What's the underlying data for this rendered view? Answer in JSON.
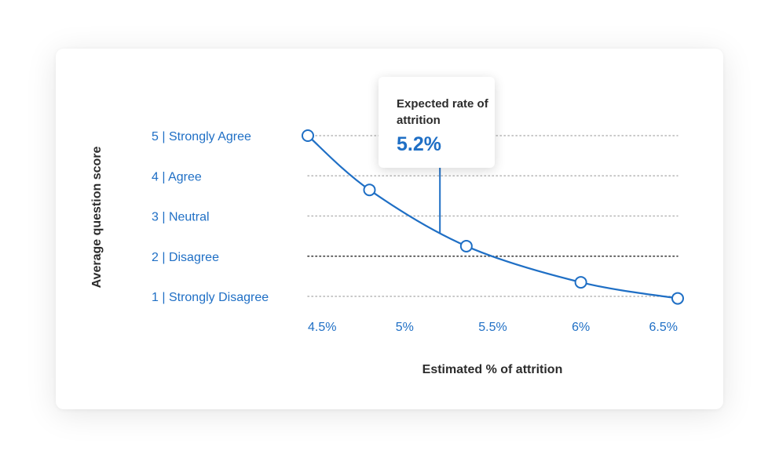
{
  "chart_data": {
    "type": "line",
    "ylabel": "Average question score",
    "xlabel": "Estimated % of attrition",
    "y_categories": [
      "1 | Strongly Disagree",
      "2 | Disagree",
      "3 | Neutral",
      "4 | Agree",
      "5 | Strongly Agree"
    ],
    "y_values": [
      1,
      2,
      3,
      4,
      5
    ],
    "x_ticks": [
      4.5,
      5,
      5.5,
      6,
      6.5
    ],
    "x_tick_labels": [
      "4.5%",
      "5%",
      "5.5%",
      "6%",
      "6.5%"
    ],
    "xlim": [
      4.45,
      6.55
    ],
    "ylim": [
      1,
      5
    ],
    "series": [
      {
        "points": [
          {
            "x": 4.45,
            "y": 5.0
          },
          {
            "x": 4.8,
            "y": 3.65
          },
          {
            "x": 5.35,
            "y": 2.25
          },
          {
            "x": 6.0,
            "y": 1.35
          },
          {
            "x": 6.55,
            "y": 0.95
          }
        ]
      }
    ],
    "highlight_line_y": 2,
    "annotation": {
      "label": "Expected rate of attrition",
      "value_text": "5.2%",
      "x": 5.2
    },
    "colors": {
      "line": "#1f6fc5",
      "grid": "#b5b5b5",
      "grid_highlight": "#333333"
    },
    "grid": true
  }
}
